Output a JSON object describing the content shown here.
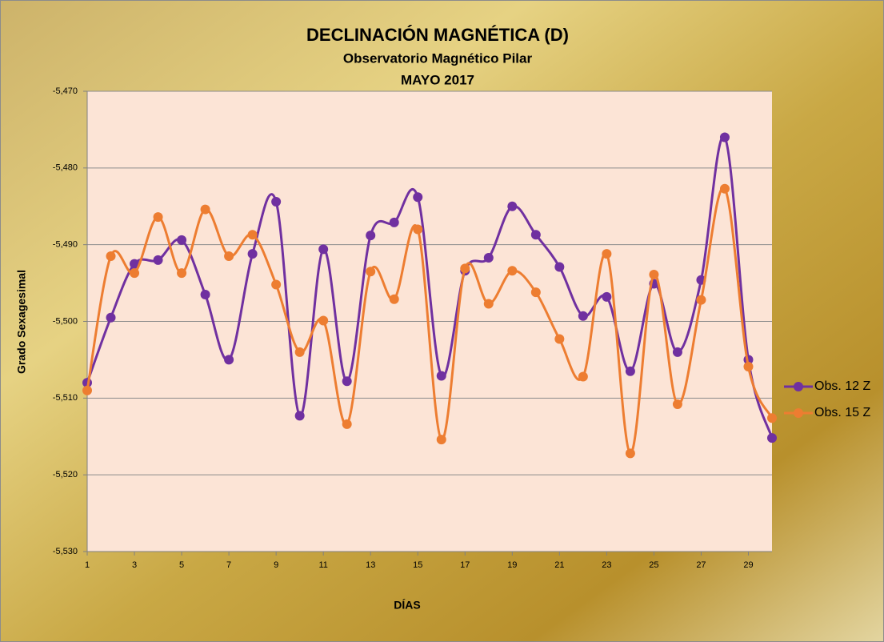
{
  "chart_data": {
    "type": "line",
    "title": "DECLINACIÓN MAGNÉTICA (D)",
    "subtitle": "Observatorio Magnético Pilar",
    "period": "MAYO 2017",
    "xlabel": "DÍAS",
    "ylabel": "Grado Sexagesimal",
    "x": [
      1,
      2,
      3,
      4,
      5,
      6,
      7,
      8,
      9,
      10,
      11,
      12,
      13,
      14,
      15,
      16,
      17,
      18,
      19,
      20,
      21,
      22,
      23,
      24,
      25,
      26,
      27,
      28,
      29,
      30
    ],
    "xlim": [
      1,
      30
    ],
    "xticks": [
      1,
      3,
      5,
      7,
      9,
      11,
      13,
      15,
      17,
      19,
      21,
      23,
      25,
      27,
      29
    ],
    "ylim": [
      -5.53,
      -5.47
    ],
    "yticks": [
      {
        "value": -5.53,
        "label": "-5,530"
      },
      {
        "value": -5.52,
        "label": "-5,520"
      },
      {
        "value": -5.51,
        "label": "-5,510"
      },
      {
        "value": -5.5,
        "label": "-5,500"
      },
      {
        "value": -5.49,
        "label": "-5,490"
      },
      {
        "value": -5.48,
        "label": "-5,480"
      },
      {
        "value": -5.47,
        "label": "-5,470"
      }
    ],
    "grid": true,
    "smooth": true,
    "legend": "right",
    "series": [
      {
        "name": "Obs. 12 Z",
        "color": "#7030a0",
        "values": [
          -5.508,
          -5.4995,
          -5.4925,
          -5.492,
          -5.4894,
          -5.4965,
          -5.505,
          -5.4912,
          -5.4844,
          -5.5123,
          -5.4906,
          -5.5078,
          -5.4888,
          -5.4871,
          -5.4838,
          -5.5071,
          -5.4934,
          -5.4917,
          -5.485,
          -5.4887,
          -5.4929,
          -5.4993,
          -5.4968,
          -5.5065,
          -5.4951,
          -5.504,
          -5.4946,
          -5.476,
          -5.505,
          -5.5152
        ]
      },
      {
        "name": "Obs. 15 Z",
        "color": "#ed7d31",
        "values": [
          -5.509,
          -5.4915,
          -5.4937,
          -5.4864,
          -5.4937,
          -5.4854,
          -5.4915,
          -5.4887,
          -5.4952,
          -5.504,
          -5.4999,
          -5.5134,
          -5.4935,
          -5.4971,
          -5.488,
          -5.5154,
          -5.4931,
          -5.4977,
          -5.4934,
          -5.4962,
          -5.5023,
          -5.5072,
          -5.4912,
          -5.5172,
          -5.4939,
          -5.5108,
          -5.4972,
          -5.4827,
          -5.5059,
          -5.5126
        ]
      }
    ]
  }
}
